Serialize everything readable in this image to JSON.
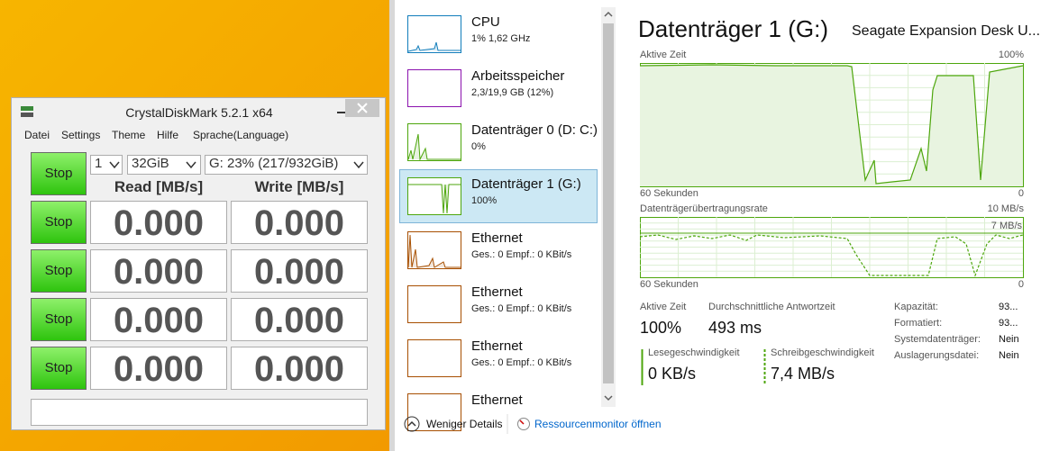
{
  "crystaldiskmark": {
    "title": "CrystalDiskMark 5.2.1 x64",
    "menu": [
      "Datei",
      "Settings",
      "Theme",
      "Hilfe",
      "Sprache(Language)"
    ],
    "count": "1",
    "size": "32GiB",
    "drive": "G: 23% (217/932GiB)",
    "headers": [
      "Read [MB/s]",
      "Write [MB/s]"
    ],
    "buttons": [
      "Stop",
      "Stop",
      "Stop",
      "Stop",
      "Stop"
    ],
    "rows": [
      [
        "0.000",
        "0.000"
      ],
      [
        "0.000",
        "0.000"
      ],
      [
        "0.000",
        "0.000"
      ],
      [
        "0.000",
        "0.000"
      ]
    ]
  },
  "task_manager": {
    "sidebar": [
      {
        "name": "CPU",
        "detail": "1% 1,62 GHz"
      },
      {
        "name": "Arbeitsspeicher",
        "detail": "2,3/19,9 GB (12%)"
      },
      {
        "name": "Datenträger 0 (D: C:)",
        "detail": "0%"
      },
      {
        "name": "Datenträger 1 (G:)",
        "detail": "100%"
      },
      {
        "name": "Ethernet",
        "detail": "Ges.: 0 Empf.: 0 KBit/s"
      },
      {
        "name": "Ethernet",
        "detail": "Ges.: 0 Empf.: 0 KBit/s"
      },
      {
        "name": "Ethernet",
        "detail": "Ges.: 0 Empf.: 0 KBit/s"
      },
      {
        "name": "Ethernet"
      }
    ],
    "detail": {
      "title": "Datenträger 1 (G:)",
      "model": "Seagate Expansion Desk U...",
      "graph1": {
        "label": "Aktive Zeit",
        "max": "100%",
        "time": "60 Sekunden",
        "min": "0"
      },
      "graph2": {
        "label": "Datenträgerübertragungsrate",
        "max": "10 MB/s",
        "marker": "7 MB/s",
        "time": "60 Sekunden",
        "min": "0"
      },
      "stats": [
        {
          "label": "Aktive Zeit",
          "value": "100%"
        },
        {
          "label": "Durchschnittliche Antwortzeit",
          "value": "493 ms"
        },
        {
          "label": "Lesegeschwindigkeit",
          "value": "0 KB/s"
        },
        {
          "label": "Schreibgeschwindigkeit",
          "value": "7,4 MB/s"
        }
      ],
      "properties": [
        {
          "label": "Kapazität:",
          "value": "93..."
        },
        {
          "label": "Formatiert:",
          "value": "93..."
        },
        {
          "label": "Systemdatenträger:",
          "value": "Nein"
        },
        {
          "label": "Auslagerungsdatei:",
          "value": "Nein"
        }
      ]
    },
    "footer": {
      "fewer": "Weniger Details",
      "monitor": "Ressourcenmonitor öffnen"
    }
  }
}
